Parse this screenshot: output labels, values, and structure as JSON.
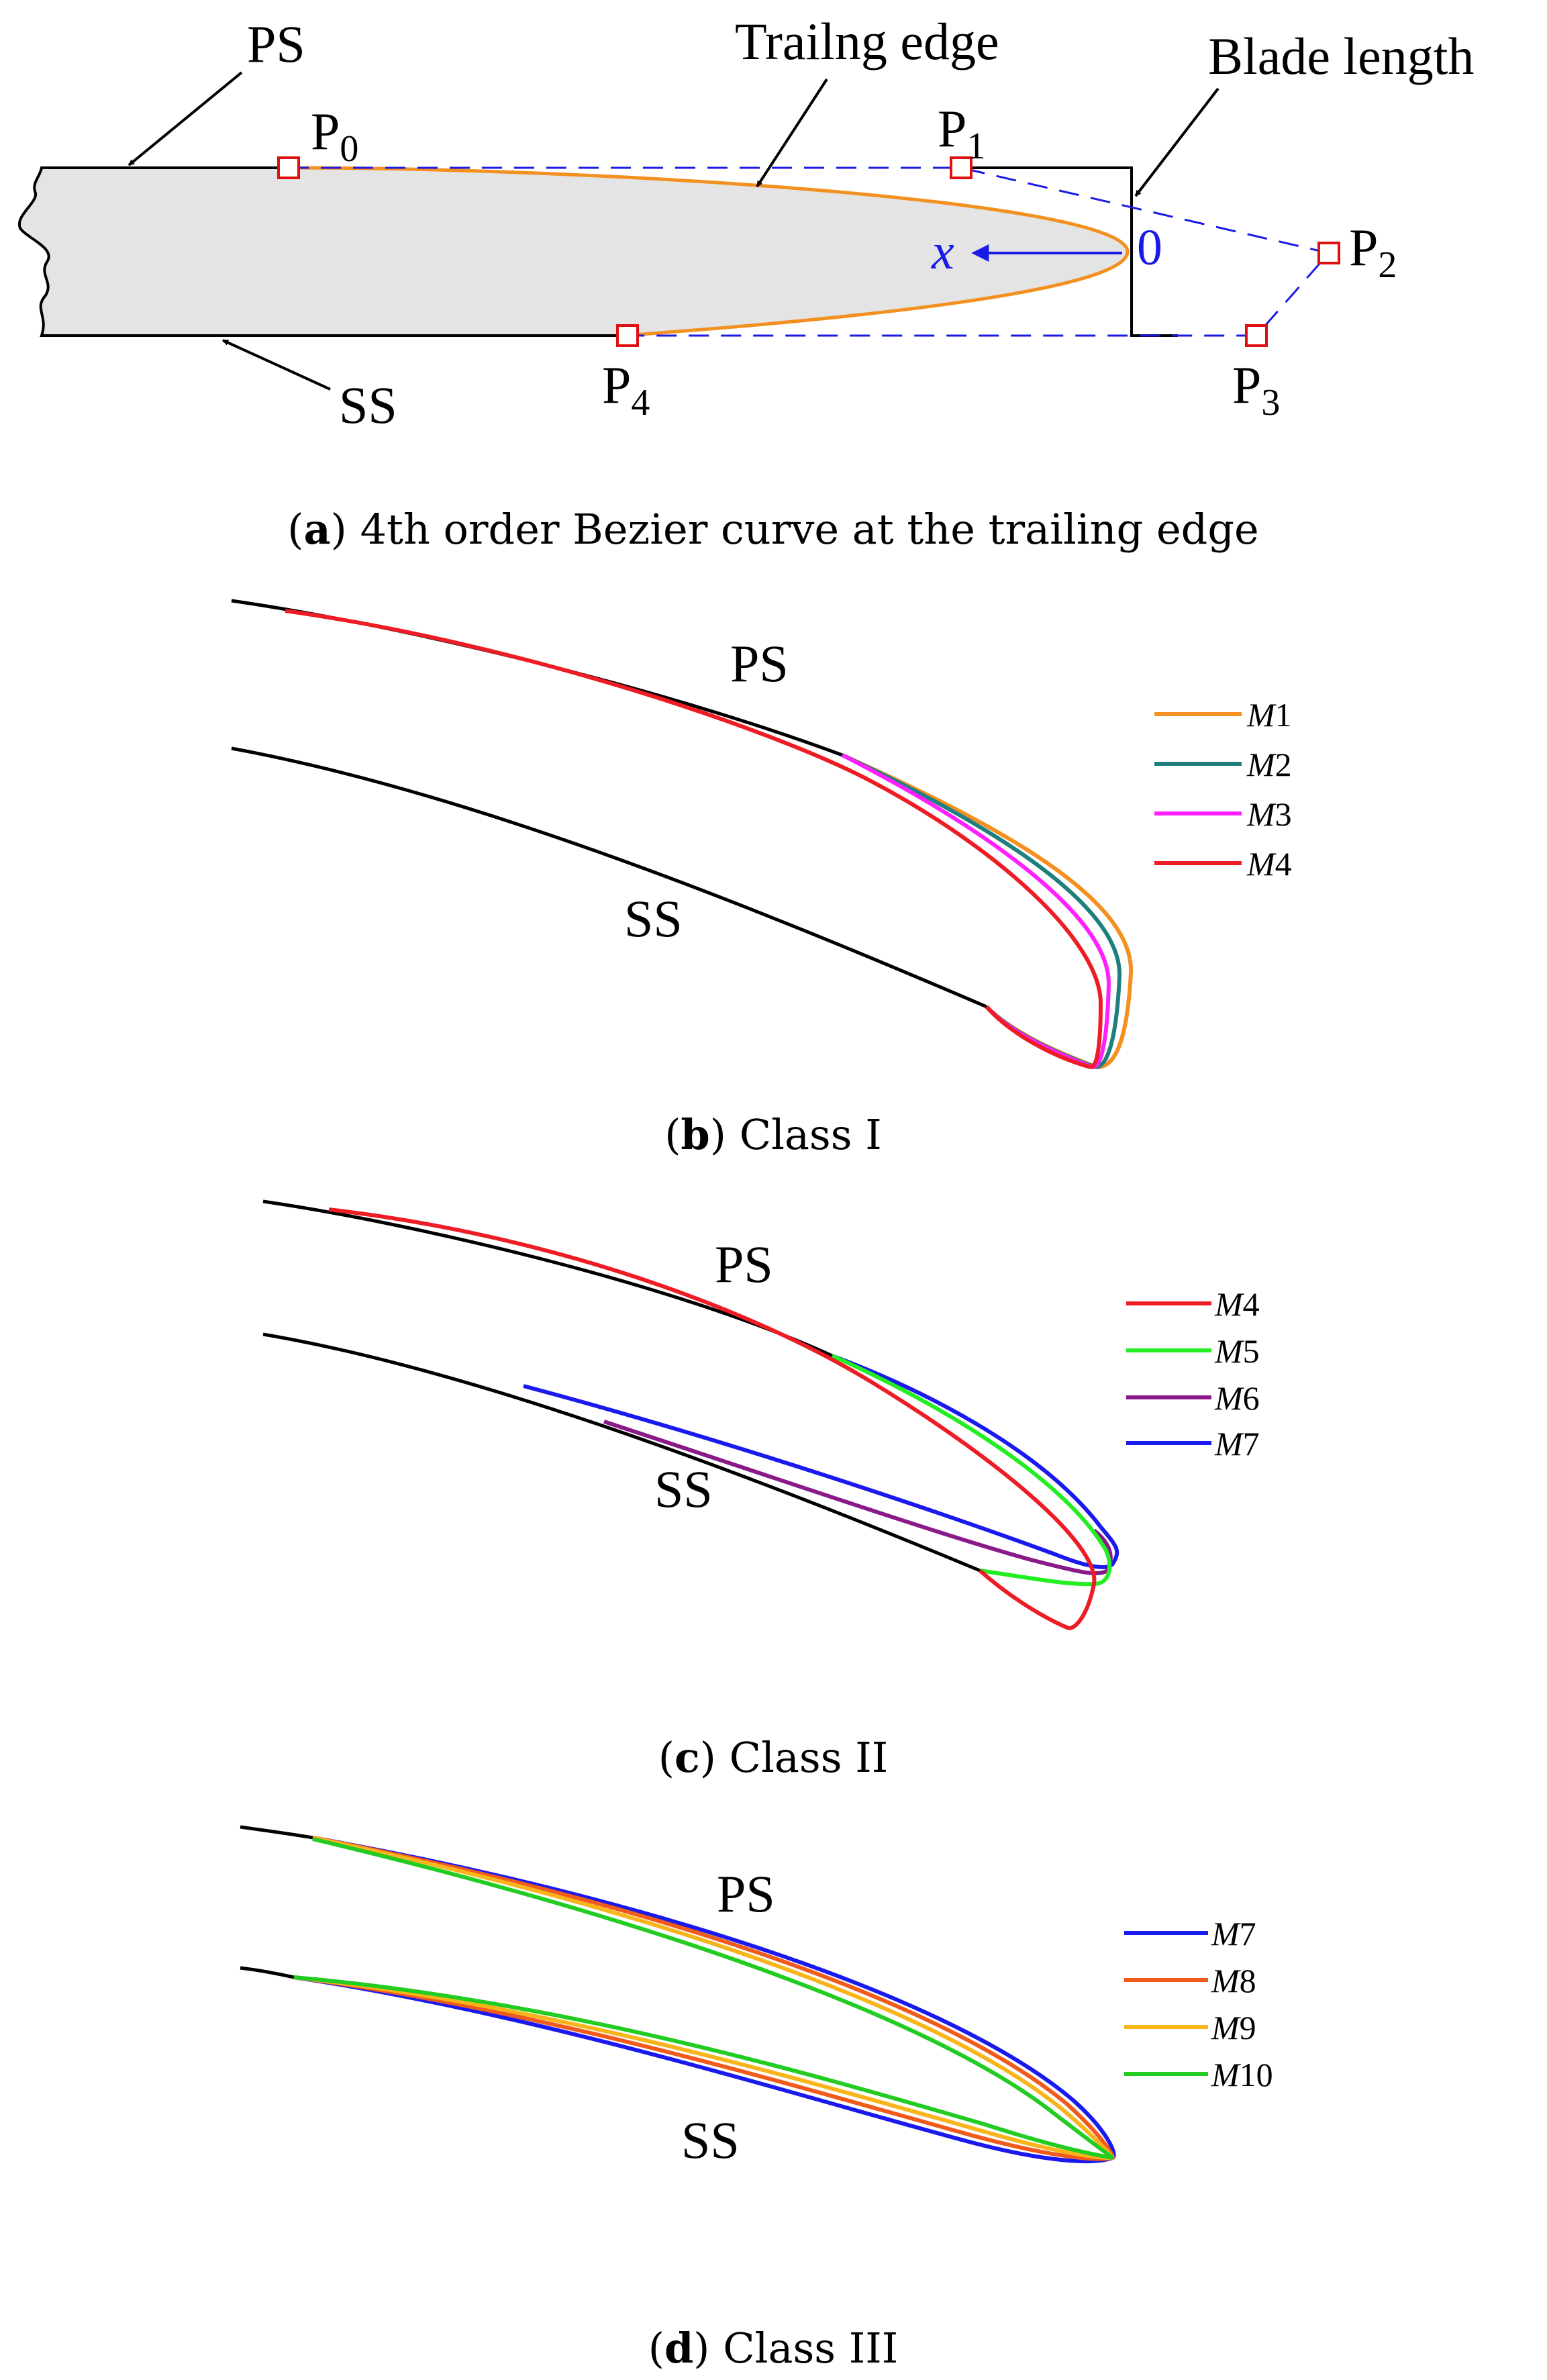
{
  "panel_a": {
    "labels": {
      "ps": "PS",
      "ss": "SS",
      "trailing_edge": "Trailng edge",
      "blade_length": "Blade length",
      "x_axis": "x",
      "origin": "0"
    },
    "control_points": [
      {
        "name": "P",
        "sub": "0"
      },
      {
        "name": "P",
        "sub": "1"
      },
      {
        "name": "P",
        "sub": "2"
      },
      {
        "name": "P",
        "sub": "3"
      },
      {
        "name": "P",
        "sub": "4"
      }
    ],
    "caption": {
      "letter": "a",
      "text": " 4th order Bezier curve at the trailing edge"
    },
    "colors": {
      "curve": "#f39020",
      "control_point": "#e01010",
      "dashed": "#1a1ae6",
      "blade_fill": "#e4e4e4"
    }
  },
  "panel_b": {
    "labels": {
      "ps": "PS",
      "ss": "SS"
    },
    "legend": [
      {
        "prefix": "M",
        "num": "1",
        "color": "#f39020"
      },
      {
        "prefix": "M",
        "num": "2",
        "color": "#1f7f7f"
      },
      {
        "prefix": "M",
        "num": "3",
        "color": "#ff20ff"
      },
      {
        "prefix": "M",
        "num": "4",
        "color": "#ee1c24"
      }
    ],
    "caption": {
      "letter": "b",
      "text": " Class I"
    }
  },
  "panel_c": {
    "labels": {
      "ps": "PS",
      "ss": "SS"
    },
    "legend": [
      {
        "prefix": "M",
        "num": "4",
        "color": "#ee1c24"
      },
      {
        "prefix": "M",
        "num": "5",
        "color": "#22ee22"
      },
      {
        "prefix": "M",
        "num": "6",
        "color": "#8a1a8a"
      },
      {
        "prefix": "M",
        "num": "7",
        "color": "#1a1aee"
      }
    ],
    "caption": {
      "letter": "c",
      "text": " Class II"
    }
  },
  "panel_d": {
    "labels": {
      "ps": "PS",
      "ss": "SS"
    },
    "legend": [
      {
        "prefix": "M",
        "num": "7",
        "color": "#1a1aee"
      },
      {
        "prefix": "M",
        "num": "8",
        "color": "#f05a1a"
      },
      {
        "prefix": "M",
        "num": "9",
        "color": "#f8b41a"
      },
      {
        "prefix": "M",
        "num": "10",
        "color": "#22cc22"
      }
    ],
    "caption": {
      "letter": "d",
      "text": " Class III"
    }
  }
}
